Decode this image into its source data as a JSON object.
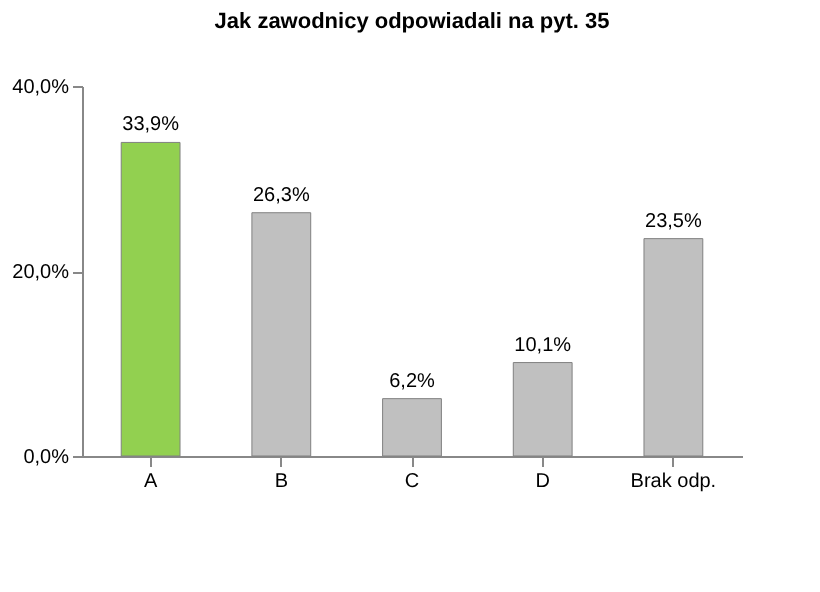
{
  "chart_data": {
    "type": "bar",
    "title": "Jak zawodnicy odpowiadali na pyt. 35",
    "categories": [
      "A",
      "B",
      "C",
      "D",
      "Brak odp."
    ],
    "values": [
      33.9,
      26.3,
      6.2,
      10.1,
      23.5
    ],
    "colors": [
      "#92d050",
      "#c0c0c0",
      "#c0c0c0",
      "#c0c0c0",
      "#c0c0c0"
    ],
    "value_labels": [
      "33,9%",
      "26,3%",
      "6,2%",
      "10,1%",
      "23,5%"
    ],
    "ylim": [
      0,
      40
    ],
    "yticks": [
      {
        "value": 0,
        "label": "0,0%"
      },
      {
        "value": 20,
        "label": "20,0%"
      },
      {
        "value": 40,
        "label": "40,0%"
      }
    ],
    "grid": false
  }
}
